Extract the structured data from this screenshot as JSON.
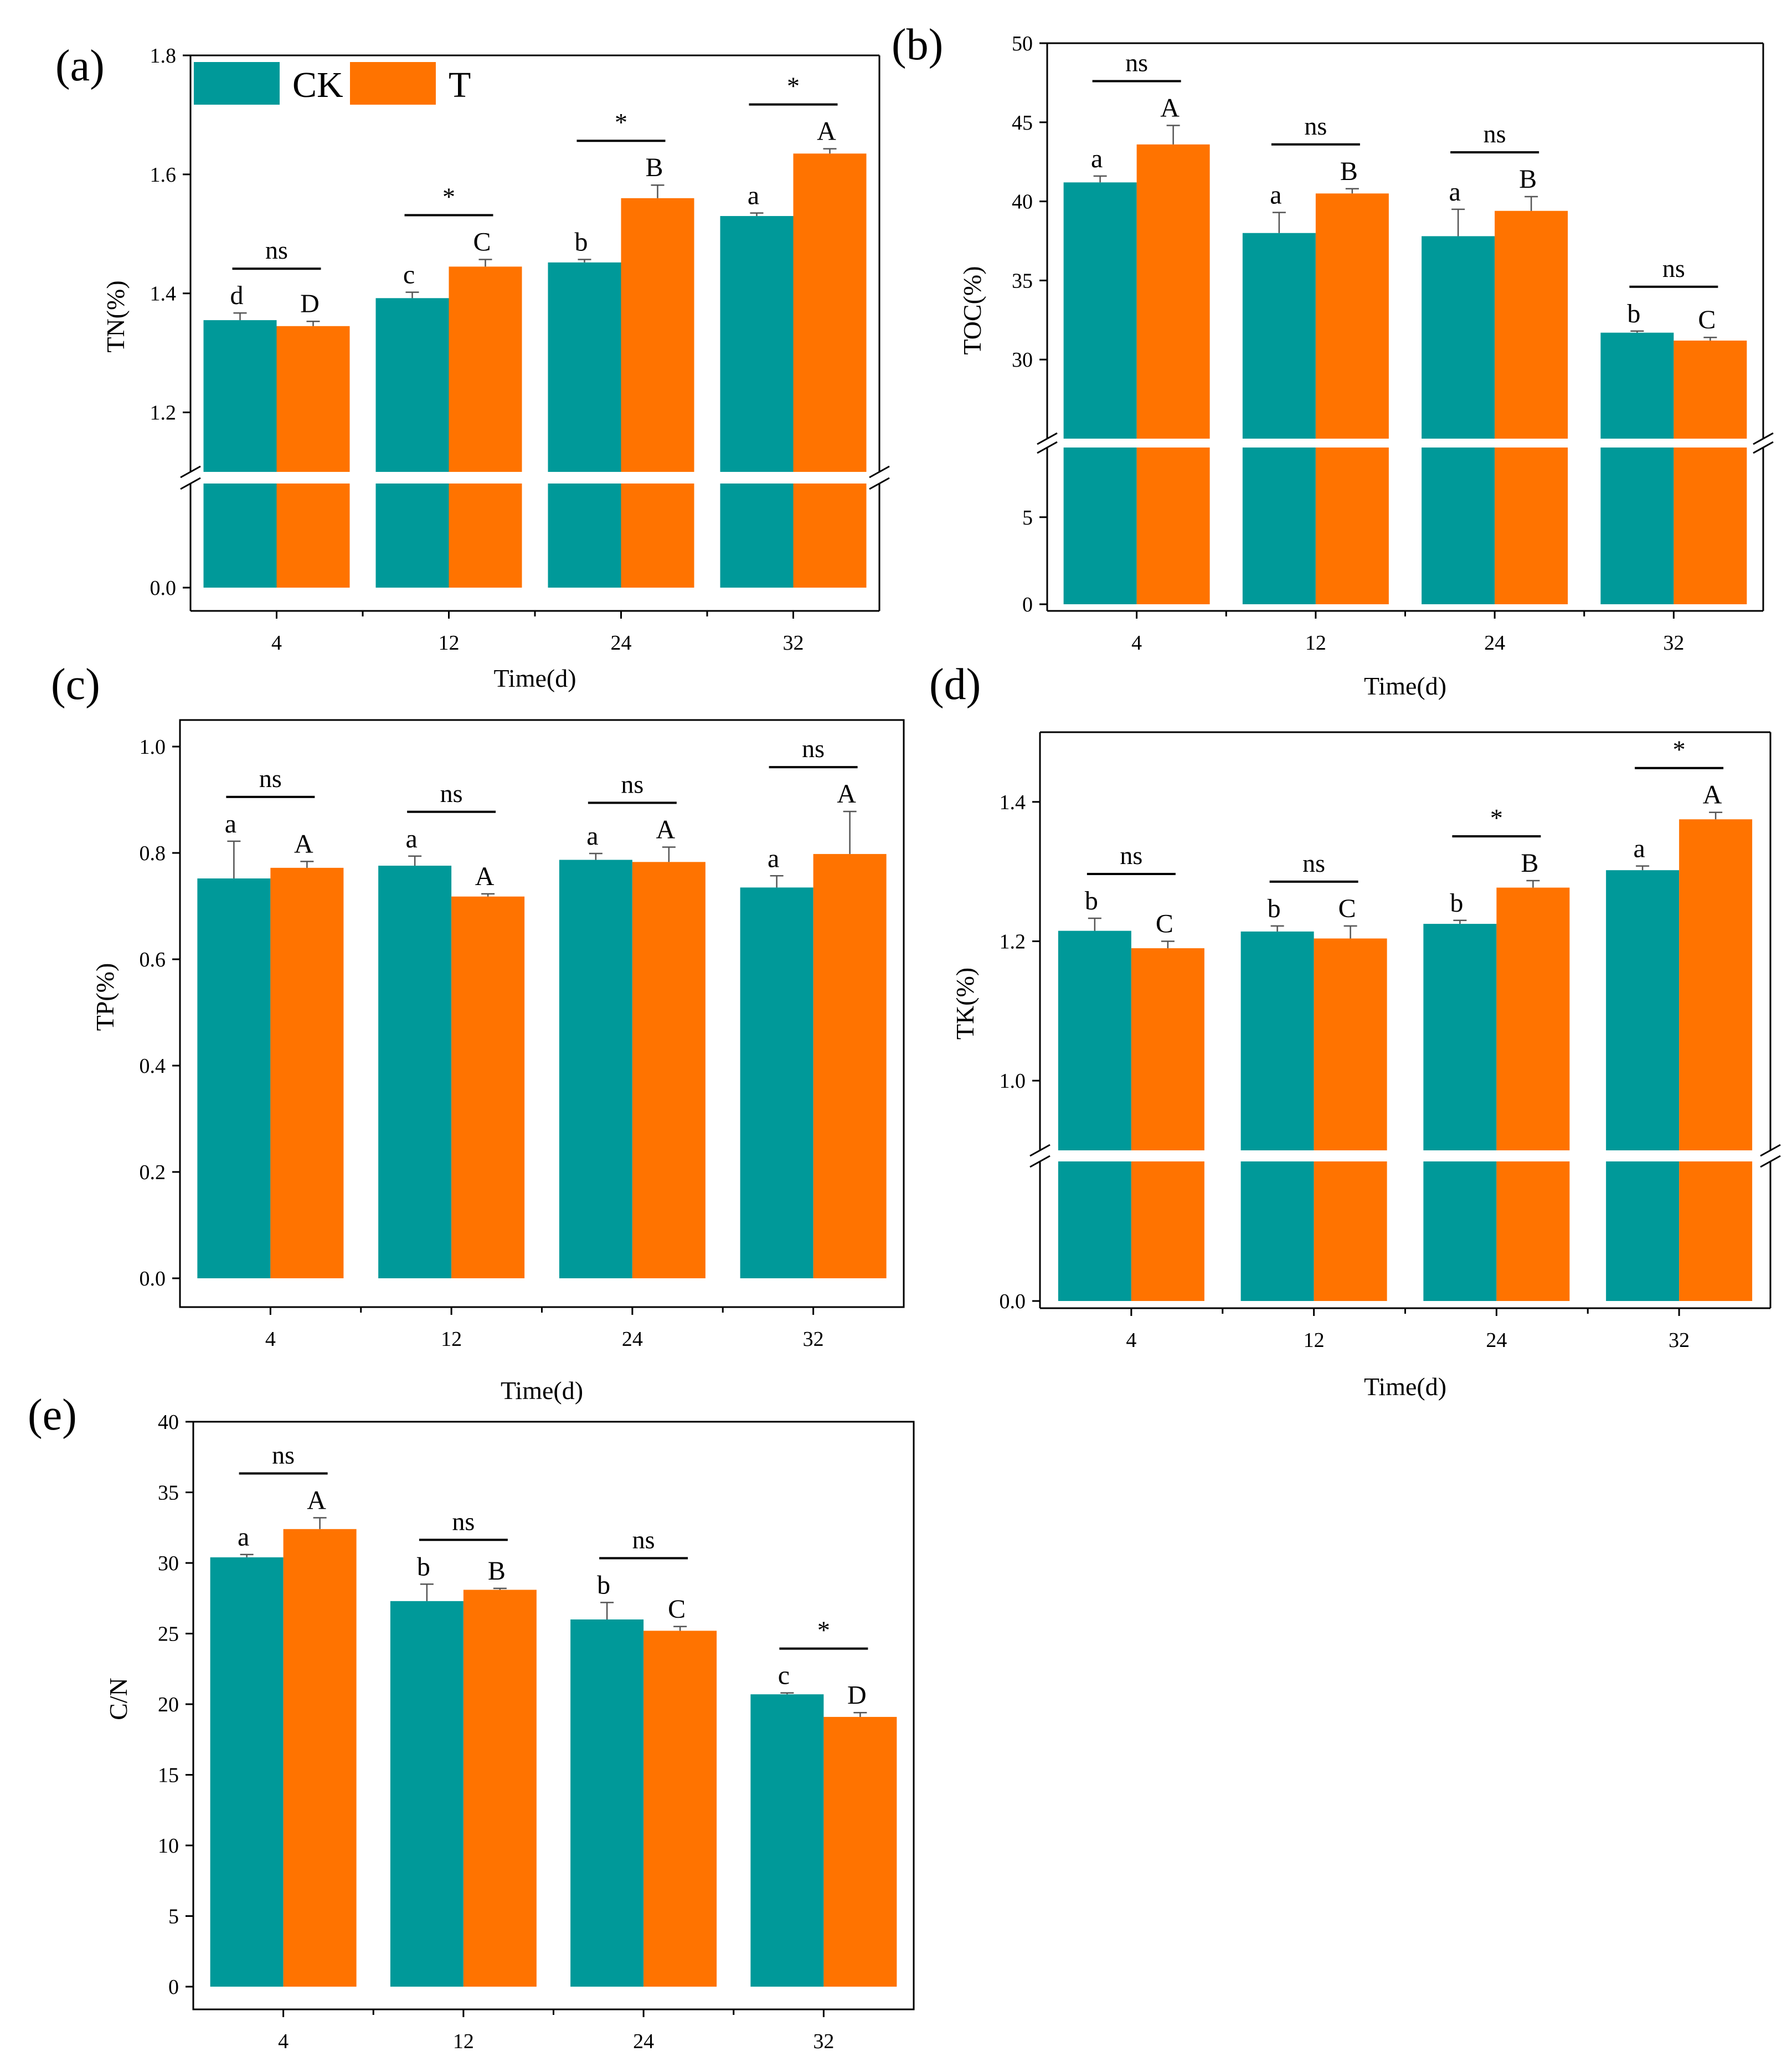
{
  "colors": {
    "CK": "#009999",
    "T": "#ff7300"
  },
  "legend": [
    {
      "label": "CK",
      "color": "#009999"
    },
    {
      "label": "T",
      "color": "#ff7300"
    }
  ],
  "chart_data": [
    {
      "id": "a",
      "panel_label": "(a)",
      "type": "bar",
      "categories": [
        "4",
        "12",
        "24",
        "32"
      ],
      "xlabel": "Time(d)",
      "ylabel": "TN(%)",
      "yticks_upper": [
        "1.2",
        "1.4",
        "1.6",
        "1.8"
      ],
      "yticks_lower": [
        "0.0"
      ],
      "axis_break": [
        0.1,
        1.0
      ],
      "ylim": [
        0,
        1.8
      ],
      "series": [
        {
          "name": "CK",
          "values": [
            1.355,
            1.392,
            1.452,
            1.53
          ],
          "errors": [
            0.012,
            0.01,
            0.005,
            0.005
          ],
          "letters": [
            "d",
            "c",
            "b",
            "a"
          ]
        },
        {
          "name": "T",
          "values": [
            1.345,
            1.445,
            1.56,
            1.635
          ],
          "errors": [
            0.008,
            0.012,
            0.022,
            0.008
          ],
          "letters": [
            "D",
            "C",
            "B",
            "A"
          ]
        }
      ],
      "significance": [
        "ns",
        "*",
        "*",
        "*"
      ]
    },
    {
      "id": "b",
      "panel_label": "(b)",
      "type": "bar",
      "categories": [
        "4",
        "12",
        "24",
        "32"
      ],
      "xlabel": "Time(d)",
      "ylabel": "TOC(%)",
      "yticks_upper": [
        "30",
        "35",
        "40",
        "45",
        "50"
      ],
      "yticks_lower": [
        "0",
        "5"
      ],
      "axis_break": [
        9,
        25
      ],
      "ylim": [
        0,
        50
      ],
      "series": [
        {
          "name": "CK",
          "values": [
            41.2,
            38.0,
            37.8,
            31.7
          ],
          "errors": [
            0.4,
            1.3,
            1.7,
            0.1
          ],
          "letters": [
            "a",
            "a",
            "a",
            "b"
          ]
        },
        {
          "name": "T",
          "values": [
            43.6,
            40.5,
            39.4,
            31.2
          ],
          "errors": [
            1.2,
            0.3,
            0.9,
            0.2
          ],
          "letters": [
            "A",
            "B",
            "B",
            "C"
          ]
        }
      ],
      "significance": [
        "ns",
        "ns",
        "ns",
        "ns"
      ]
    },
    {
      "id": "c",
      "panel_label": "(c)",
      "type": "bar",
      "categories": [
        "4",
        "12",
        "24",
        "32"
      ],
      "xlabel": "Time(d)",
      "ylabel": "TP(%)",
      "yticks": [
        "0.0",
        "0.2",
        "0.4",
        "0.6",
        "0.8",
        "1.0"
      ],
      "ylim": [
        0,
        1.0
      ],
      "series": [
        {
          "name": "CK",
          "values": [
            0.752,
            0.776,
            0.787,
            0.735
          ],
          "errors": [
            0.07,
            0.018,
            0.012,
            0.022
          ],
          "letters": [
            "a",
            "a",
            "a",
            "a"
          ]
        },
        {
          "name": "T",
          "values": [
            0.772,
            0.718,
            0.783,
            0.798
          ],
          "errors": [
            0.012,
            0.005,
            0.028,
            0.08
          ],
          "letters": [
            "A",
            "A",
            "A",
            "A"
          ]
        }
      ],
      "significance": [
        "ns",
        "ns",
        "ns",
        "ns"
      ]
    },
    {
      "id": "d",
      "panel_label": "(d)",
      "type": "bar",
      "categories": [
        "4",
        "12",
        "24",
        "32"
      ],
      "xlabel": "Time(d)",
      "ylabel": "TK(%)",
      "yticks_upper": [
        "1.0",
        "1.2",
        "1.4"
      ],
      "yticks_lower": [
        "0.0"
      ],
      "axis_break": [
        0.2,
        0.9
      ],
      "ylim": [
        0,
        1.5
      ],
      "series": [
        {
          "name": "CK",
          "values": [
            1.215,
            1.214,
            1.225,
            1.302
          ],
          "errors": [
            0.018,
            0.008,
            0.005,
            0.006
          ],
          "letters": [
            "b",
            "b",
            "b",
            "a"
          ]
        },
        {
          "name": "T",
          "values": [
            1.19,
            1.204,
            1.277,
            1.375
          ],
          "errors": [
            0.01,
            0.018,
            0.01,
            0.01
          ],
          "letters": [
            "C",
            "C",
            "B",
            "A"
          ]
        }
      ],
      "significance": [
        "ns",
        "ns",
        "*",
        "*"
      ]
    },
    {
      "id": "e",
      "panel_label": "(e)",
      "type": "bar",
      "categories": [
        "4",
        "12",
        "24",
        "32"
      ],
      "xlabel": "",
      "ylabel": "C/N",
      "yticks": [
        "0",
        "5",
        "10",
        "15",
        "20",
        "25",
        "30",
        "35",
        "40"
      ],
      "ylim": [
        0,
        40
      ],
      "series": [
        {
          "name": "CK",
          "values": [
            30.4,
            27.3,
            26.0,
            20.7
          ],
          "errors": [
            0.2,
            1.2,
            1.2,
            0.1
          ],
          "letters": [
            "a",
            "b",
            "b",
            "c"
          ]
        },
        {
          "name": "T",
          "values": [
            32.4,
            28.1,
            25.2,
            19.1
          ],
          "errors": [
            0.8,
            0.1,
            0.3,
            0.3
          ],
          "letters": [
            "A",
            "B",
            "C",
            "D"
          ]
        }
      ],
      "significance": [
        "ns",
        "ns",
        "ns",
        "*"
      ]
    }
  ]
}
